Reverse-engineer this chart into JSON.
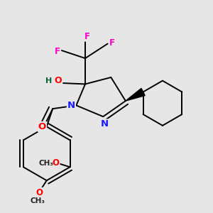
{
  "background_color": "#e6e6e6",
  "figsize": [
    3.0,
    3.0
  ],
  "dpi": 100,
  "atom_colors": {
    "C": "#000000",
    "N": "#1a1aff",
    "O": "#ff0000",
    "F": "#ff00cc",
    "H": "#006633"
  },
  "bond_color": "#000000",
  "bond_width": 1.4
}
